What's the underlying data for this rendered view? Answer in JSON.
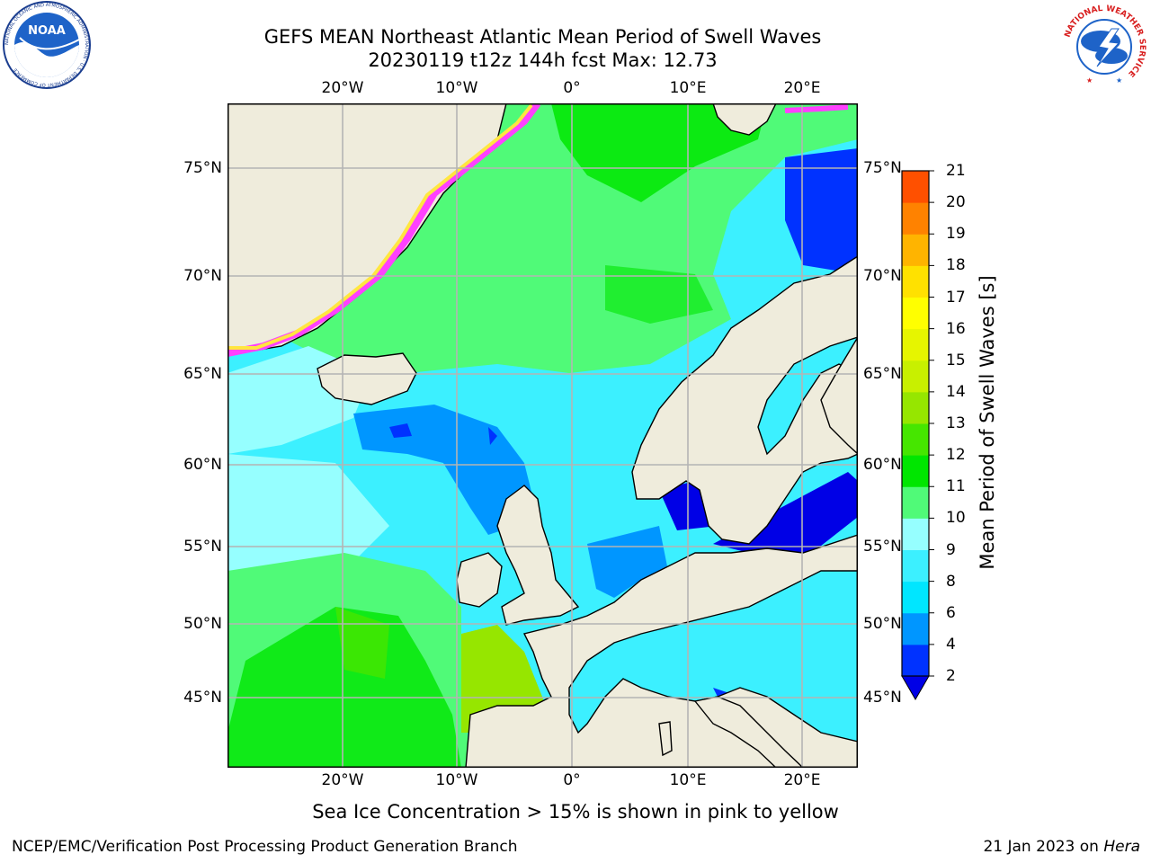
{
  "title": {
    "line1": "GEFS MEAN Northeast Atlantic Mean Period of Swell Waves",
    "line2": "20230119 t12z 144h fcst   Max: 12.73"
  },
  "map": {
    "lon_labels": [
      "20°W",
      "10°W",
      "0°",
      "10°E",
      "20°E"
    ],
    "lat_labels": [
      "75°N",
      "70°N",
      "65°N",
      "60°N",
      "55°N",
      "50°N",
      "45°N"
    ],
    "colors": {
      "land": "#efecdc",
      "ice_pink": "#ff40ff",
      "ice_yellow": "#ffe640",
      "grid": "#b4b4b4"
    }
  },
  "colorbar": {
    "title": "Mean Period of Swell Waves [s]",
    "levels": [
      "2",
      "4",
      "6",
      "8",
      "9",
      "10",
      "11",
      "12",
      "13",
      "14",
      "15",
      "16",
      "17",
      "18",
      "19",
      "20",
      "21"
    ],
    "colors": [
      "#0032ff",
      "#0096ff",
      "#00e6ff",
      "#3cf0ff",
      "#96ffff",
      "#50fa78",
      "#00e600",
      "#46e600",
      "#96e600",
      "#c8f000",
      "#e6f500",
      "#ffff00",
      "#ffe100",
      "#ffb400",
      "#ff8200",
      "#ff5000",
      "#ff1e00"
    ],
    "under_color": "#0000e6"
  },
  "note": "Sea Ice Concentration > 15% is shown in pink to yellow",
  "footer": {
    "left": "NCEP/EMC/Verification Post Processing Product Generation Branch",
    "right_date": "21 Jan 2023 on ",
    "right_machine": "Hera"
  },
  "logos": {
    "noaa_text": "NOAA",
    "noaa_ring": "NATIONAL OCEANIC AND ATMOSPHERIC ADMINISTRATION · U.S. DEPARTMENT OF COMMERCE",
    "nws_ring": "NATIONAL WEATHER SERVICE"
  }
}
